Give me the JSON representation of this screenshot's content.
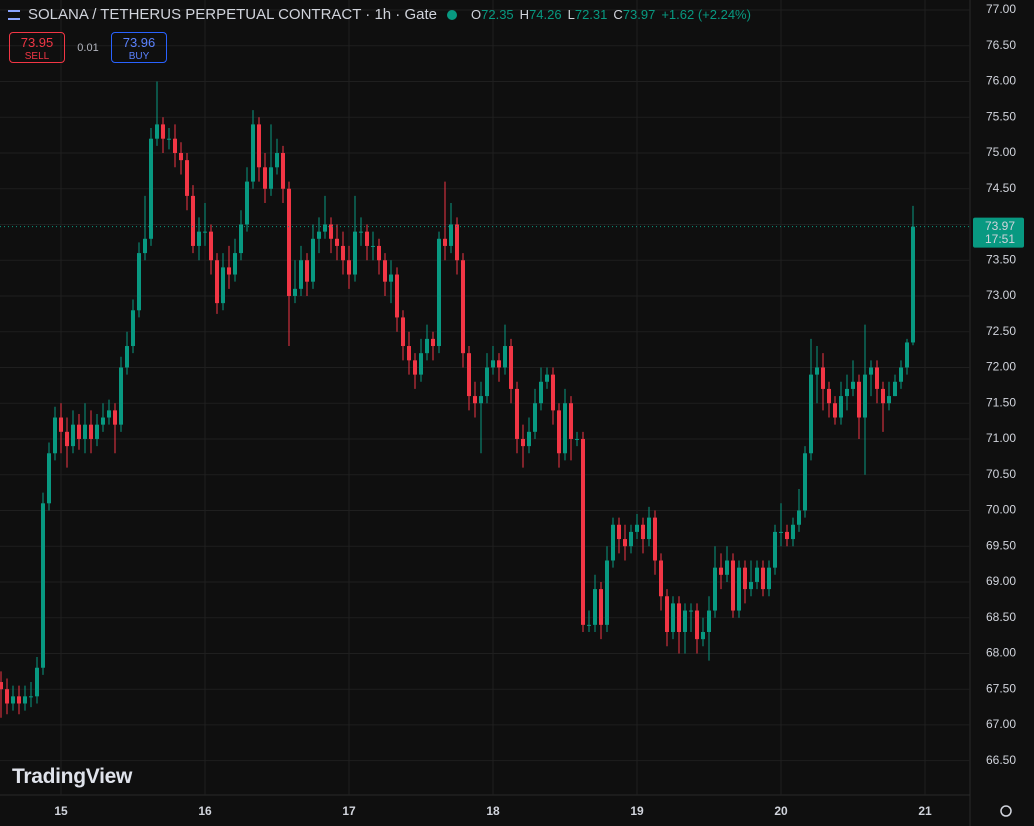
{
  "toolbar": {
    "title": "SOLANA / TETHERUS PERPETUAL CONTRACT · 1h · Gate",
    "ohlc_letters": [
      "O",
      "H",
      "L",
      "C"
    ],
    "change": "+1.62 (+2.24%)",
    "sell_price": "73.95",
    "sell_label": "SELL",
    "spread": "0.01",
    "buy_price": "73.96",
    "buy_label": "BUY",
    "countdown": "17:51",
    "logo": "TradingView"
  },
  "chart_data": {
    "type": "candlestick",
    "up_color": "#089981",
    "down_color": "#f23645",
    "grid": true,
    "ylim": [
      66.02,
      77.14
    ],
    "yticks": [
      {
        "value": 66.5,
        "label": "66.50"
      },
      {
        "value": 67,
        "label": "67.00"
      },
      {
        "value": 67.5,
        "label": "67.50"
      },
      {
        "value": 68,
        "label": "68.00"
      },
      {
        "value": 68.5,
        "label": "68.50"
      },
      {
        "value": 69,
        "label": "69.00"
      },
      {
        "value": 69.5,
        "label": "69.50"
      },
      {
        "value": 70,
        "label": "70.00"
      },
      {
        "value": 70.5,
        "label": "70.50"
      },
      {
        "value": 71,
        "label": "71.00"
      },
      {
        "value": 71.5,
        "label": "71.50"
      },
      {
        "value": 72,
        "label": "72.00"
      },
      {
        "value": 72.5,
        "label": "72.50"
      },
      {
        "value": 73,
        "label": "73.00"
      },
      {
        "value": 73.5,
        "label": "73.50"
      },
      {
        "value": 74,
        "label": "74.00"
      },
      {
        "value": 74.5,
        "label": "74.50"
      },
      {
        "value": 75,
        "label": "75.00"
      },
      {
        "value": 75.5,
        "label": "75.50"
      },
      {
        "value": 76,
        "label": "76.00"
      },
      {
        "value": 76.5,
        "label": "76.50"
      },
      {
        "value": 77,
        "label": "77.00"
      }
    ],
    "categories": [
      null,
      null,
      null,
      null,
      null,
      null,
      null,
      null,
      null,
      null,
      "15",
      null,
      null,
      null,
      null,
      null,
      null,
      null,
      null,
      null,
      null,
      null,
      null,
      null,
      null,
      null,
      null,
      null,
      null,
      null,
      null,
      null,
      null,
      null,
      "16",
      null,
      null,
      null,
      null,
      null,
      null,
      null,
      null,
      null,
      null,
      null,
      null,
      null,
      null,
      null,
      null,
      null,
      null,
      null,
      null,
      null,
      null,
      null,
      "17",
      null,
      null,
      null,
      null,
      null,
      null,
      null,
      null,
      null,
      null,
      null,
      null,
      null,
      null,
      null,
      null,
      null,
      null,
      null,
      null,
      null,
      null,
      null,
      "18",
      null,
      null,
      null,
      null,
      null,
      null,
      null,
      null,
      null,
      null,
      null,
      null,
      null,
      null,
      null,
      null,
      null,
      null,
      null,
      null,
      null,
      null,
      null,
      "19",
      null,
      null,
      null,
      null,
      null,
      null,
      null,
      null,
      null,
      null,
      null,
      null,
      null,
      null,
      null,
      null,
      null,
      null,
      null,
      null,
      null,
      null,
      null,
      "20",
      null,
      null,
      null,
      null,
      null,
      null,
      null,
      null,
      null,
      null,
      null,
      null,
      null,
      null,
      null,
      null,
      null,
      null,
      null,
      null,
      null,
      null,
      null,
      "21"
    ],
    "open": [
      67.6,
      67.5,
      67.3,
      67.4,
      67.3,
      67.4,
      67.4,
      67.8,
      70.1,
      70.8,
      71.3,
      71.1,
      70.9,
      71.2,
      71.0,
      71.2,
      71.0,
      71.2,
      71.3,
      71.4,
      71.2,
      72.0,
      72.3,
      72.8,
      73.6,
      73.8,
      75.2,
      75.4,
      75.2,
      75.2,
      75.0,
      74.9,
      74.4,
      73.7,
      73.9,
      73.9,
      73.5,
      72.9,
      73.4,
      73.3,
      73.6,
      74.0,
      74.6,
      75.4,
      74.8,
      74.5,
      74.8,
      75.0,
      74.5,
      73.0,
      73.1,
      73.5,
      73.2,
      73.8,
      73.9,
      74.0,
      73.8,
      73.7,
      73.5,
      73.3,
      73.9,
      73.9,
      73.7,
      73.7,
      73.5,
      73.2,
      73.3,
      72.7,
      72.3,
      72.1,
      71.9,
      72.2,
      72.4,
      72.3,
      73.8,
      73.7,
      74.0,
      73.5,
      72.2,
      71.6,
      71.5,
      71.6,
      72.0,
      72.1,
      72.0,
      72.3,
      71.7,
      71.0,
      70.9,
      71.1,
      71.5,
      71.8,
      71.9,
      71.4,
      70.8,
      71.5,
      71.0,
      71.0,
      68.4,
      68.4,
      68.9,
      68.4,
      69.3,
      69.8,
      69.6,
      69.5,
      69.7,
      69.8,
      69.6,
      69.9,
      69.3,
      68.8,
      68.3,
      68.7,
      68.3,
      68.6,
      68.6,
      68.2,
      68.3,
      68.6,
      69.2,
      69.1,
      69.3,
      68.6,
      69.2,
      68.9,
      69.0,
      69.2,
      68.9,
      69.2,
      69.7,
      69.7,
      69.6,
      69.8,
      70.0,
      70.8,
      71.9,
      72.0,
      71.7,
      71.5,
      71.3,
      71.6,
      71.7,
      71.8,
      71.3,
      71.9,
      72.0,
      71.7,
      71.5,
      71.6,
      71.8,
      72.0,
      72.35,
      null,
      null
    ],
    "high": [
      67.75,
      67.65,
      67.55,
      67.55,
      67.55,
      67.6,
      67.95,
      70.25,
      70.95,
      71.45,
      71.5,
      71.3,
      71.4,
      71.35,
      71.5,
      71.4,
      71.35,
      71.5,
      71.55,
      71.5,
      72.15,
      72.5,
      72.95,
      73.75,
      74.4,
      75.35,
      76.0,
      75.5,
      75.35,
      75.4,
      75.15,
      75.0,
      74.55,
      74.1,
      74.3,
      74.0,
      73.6,
      73.6,
      73.7,
      73.8,
      74.2,
      74.8,
      75.6,
      75.5,
      75.0,
      75.4,
      75.2,
      75.1,
      74.6,
      73.5,
      73.7,
      73.6,
      74.0,
      74.1,
      74.4,
      74.1,
      74.0,
      73.9,
      73.7,
      74.4,
      74.1,
      74.0,
      73.9,
      73.8,
      73.6,
      73.5,
      73.4,
      72.8,
      72.5,
      72.2,
      72.4,
      72.6,
      72.5,
      73.9,
      74.6,
      74.3,
      74.1,
      73.6,
      72.3,
      71.8,
      71.8,
      72.2,
      72.3,
      72.2,
      72.6,
      72.4,
      71.8,
      71.2,
      71.3,
      71.7,
      72.0,
      72.0,
      72.0,
      71.5,
      71.7,
      71.6,
      71.1,
      71.1,
      68.6,
      69.1,
      69.0,
      69.5,
      69.9,
      69.9,
      69.8,
      69.8,
      69.95,
      69.9,
      70.05,
      70.0,
      69.4,
      68.9,
      68.8,
      68.8,
      68.7,
      68.7,
      68.7,
      68.5,
      68.8,
      69.5,
      69.4,
      69.5,
      69.4,
      69.3,
      69.3,
      69.3,
      69.3,
      69.3,
      69.3,
      69.8,
      70.1,
      69.8,
      69.9,
      70.3,
      70.9,
      72.4,
      72.3,
      72.2,
      71.8,
      71.6,
      71.8,
      71.9,
      72.1,
      71.9,
      72.6,
      72.1,
      72.1,
      71.8,
      71.8,
      71.9,
      72.1,
      72.4,
      74.26,
      null,
      null
    ],
    "low": [
      67.1,
      67.15,
      67.2,
      67.15,
      67.2,
      67.25,
      67.3,
      67.7,
      70.0,
      70.7,
      70.8,
      70.6,
      70.8,
      70.85,
      70.8,
      70.8,
      70.9,
      71.1,
      71.2,
      70.8,
      71.1,
      71.9,
      72.2,
      72.7,
      73.5,
      73.7,
      75.1,
      75.0,
      75.05,
      74.8,
      74.7,
      74.2,
      73.6,
      73.5,
      73.7,
      73.3,
      72.75,
      72.8,
      73.1,
      73.2,
      73.5,
      73.9,
      74.5,
      74.6,
      74.3,
      74.4,
      74.7,
      74.3,
      72.3,
      72.9,
      73.0,
      73.0,
      73.1,
      73.6,
      73.8,
      73.6,
      73.5,
      73.3,
      73.1,
      73.2,
      73.7,
      73.5,
      73.5,
      73.3,
      73.0,
      72.9,
      72.5,
      72.1,
      71.9,
      71.7,
      71.8,
      72.1,
      72.1,
      72.2,
      73.5,
      73.6,
      73.3,
      72.0,
      71.4,
      71.3,
      70.8,
      71.5,
      71.9,
      71.8,
      71.9,
      71.5,
      70.8,
      70.6,
      70.8,
      71.0,
      71.4,
      71.7,
      71.2,
      70.6,
      70.7,
      70.7,
      70.9,
      68.3,
      68.3,
      68.3,
      68.2,
      68.3,
      69.2,
      69.4,
      69.3,
      69.4,
      69.6,
      69.4,
      69.5,
      69.1,
      68.6,
      68.1,
      68.2,
      68.0,
      68.0,
      68.3,
      68.0,
      68.1,
      67.9,
      68.5,
      68.9,
      69.0,
      68.5,
      68.5,
      68.7,
      68.8,
      68.9,
      68.8,
      68.8,
      69.1,
      69.5,
      69.5,
      69.5,
      69.7,
      69.9,
      70.7,
      71.5,
      71.4,
      71.3,
      71.2,
      71.2,
      71.4,
      71.6,
      71.0,
      70.5,
      71.6,
      71.5,
      71.1,
      71.4,
      71.6,
      71.7,
      71.9,
      72.31,
      null,
      null
    ],
    "close": [
      67.5,
      67.3,
      67.4,
      67.3,
      67.4,
      67.4,
      67.8,
      70.1,
      70.8,
      71.3,
      71.1,
      70.9,
      71.2,
      71.0,
      71.2,
      71.0,
      71.2,
      71.3,
      71.4,
      71.2,
      72.0,
      72.3,
      72.8,
      73.6,
      73.8,
      75.2,
      75.4,
      75.2,
      75.2,
      75.0,
      74.9,
      74.4,
      73.7,
      73.9,
      73.9,
      73.5,
      72.9,
      73.4,
      73.3,
      73.6,
      74.0,
      74.6,
      75.4,
      74.8,
      74.5,
      74.8,
      75.0,
      74.5,
      73.0,
      73.1,
      73.5,
      73.2,
      73.8,
      73.9,
      74.0,
      73.8,
      73.7,
      73.5,
      73.3,
      73.9,
      73.9,
      73.7,
      73.7,
      73.5,
      73.2,
      73.3,
      72.7,
      72.3,
      72.1,
      71.9,
      72.2,
      72.4,
      72.3,
      73.8,
      73.7,
      74.0,
      73.5,
      72.2,
      71.6,
      71.5,
      71.6,
      72.0,
      72.1,
      72.0,
      72.3,
      71.7,
      71.0,
      70.9,
      71.1,
      71.5,
      71.8,
      71.9,
      71.4,
      70.8,
      71.5,
      71.0,
      71.0,
      68.4,
      68.4,
      68.9,
      68.4,
      69.3,
      69.8,
      69.6,
      69.5,
      69.7,
      69.8,
      69.6,
      69.9,
      69.3,
      68.8,
      68.3,
      68.7,
      68.3,
      68.6,
      68.6,
      68.2,
      68.3,
      68.6,
      69.2,
      69.1,
      69.3,
      68.6,
      69.2,
      68.9,
      69.0,
      69.2,
      68.9,
      69.2,
      69.7,
      69.7,
      69.6,
      69.8,
      70.0,
      70.8,
      71.9,
      72.0,
      71.7,
      71.5,
      71.3,
      71.6,
      71.7,
      71.8,
      71.3,
      71.9,
      72.0,
      71.7,
      71.5,
      71.6,
      71.8,
      72.0,
      72.35,
      73.97,
      null,
      null
    ]
  }
}
